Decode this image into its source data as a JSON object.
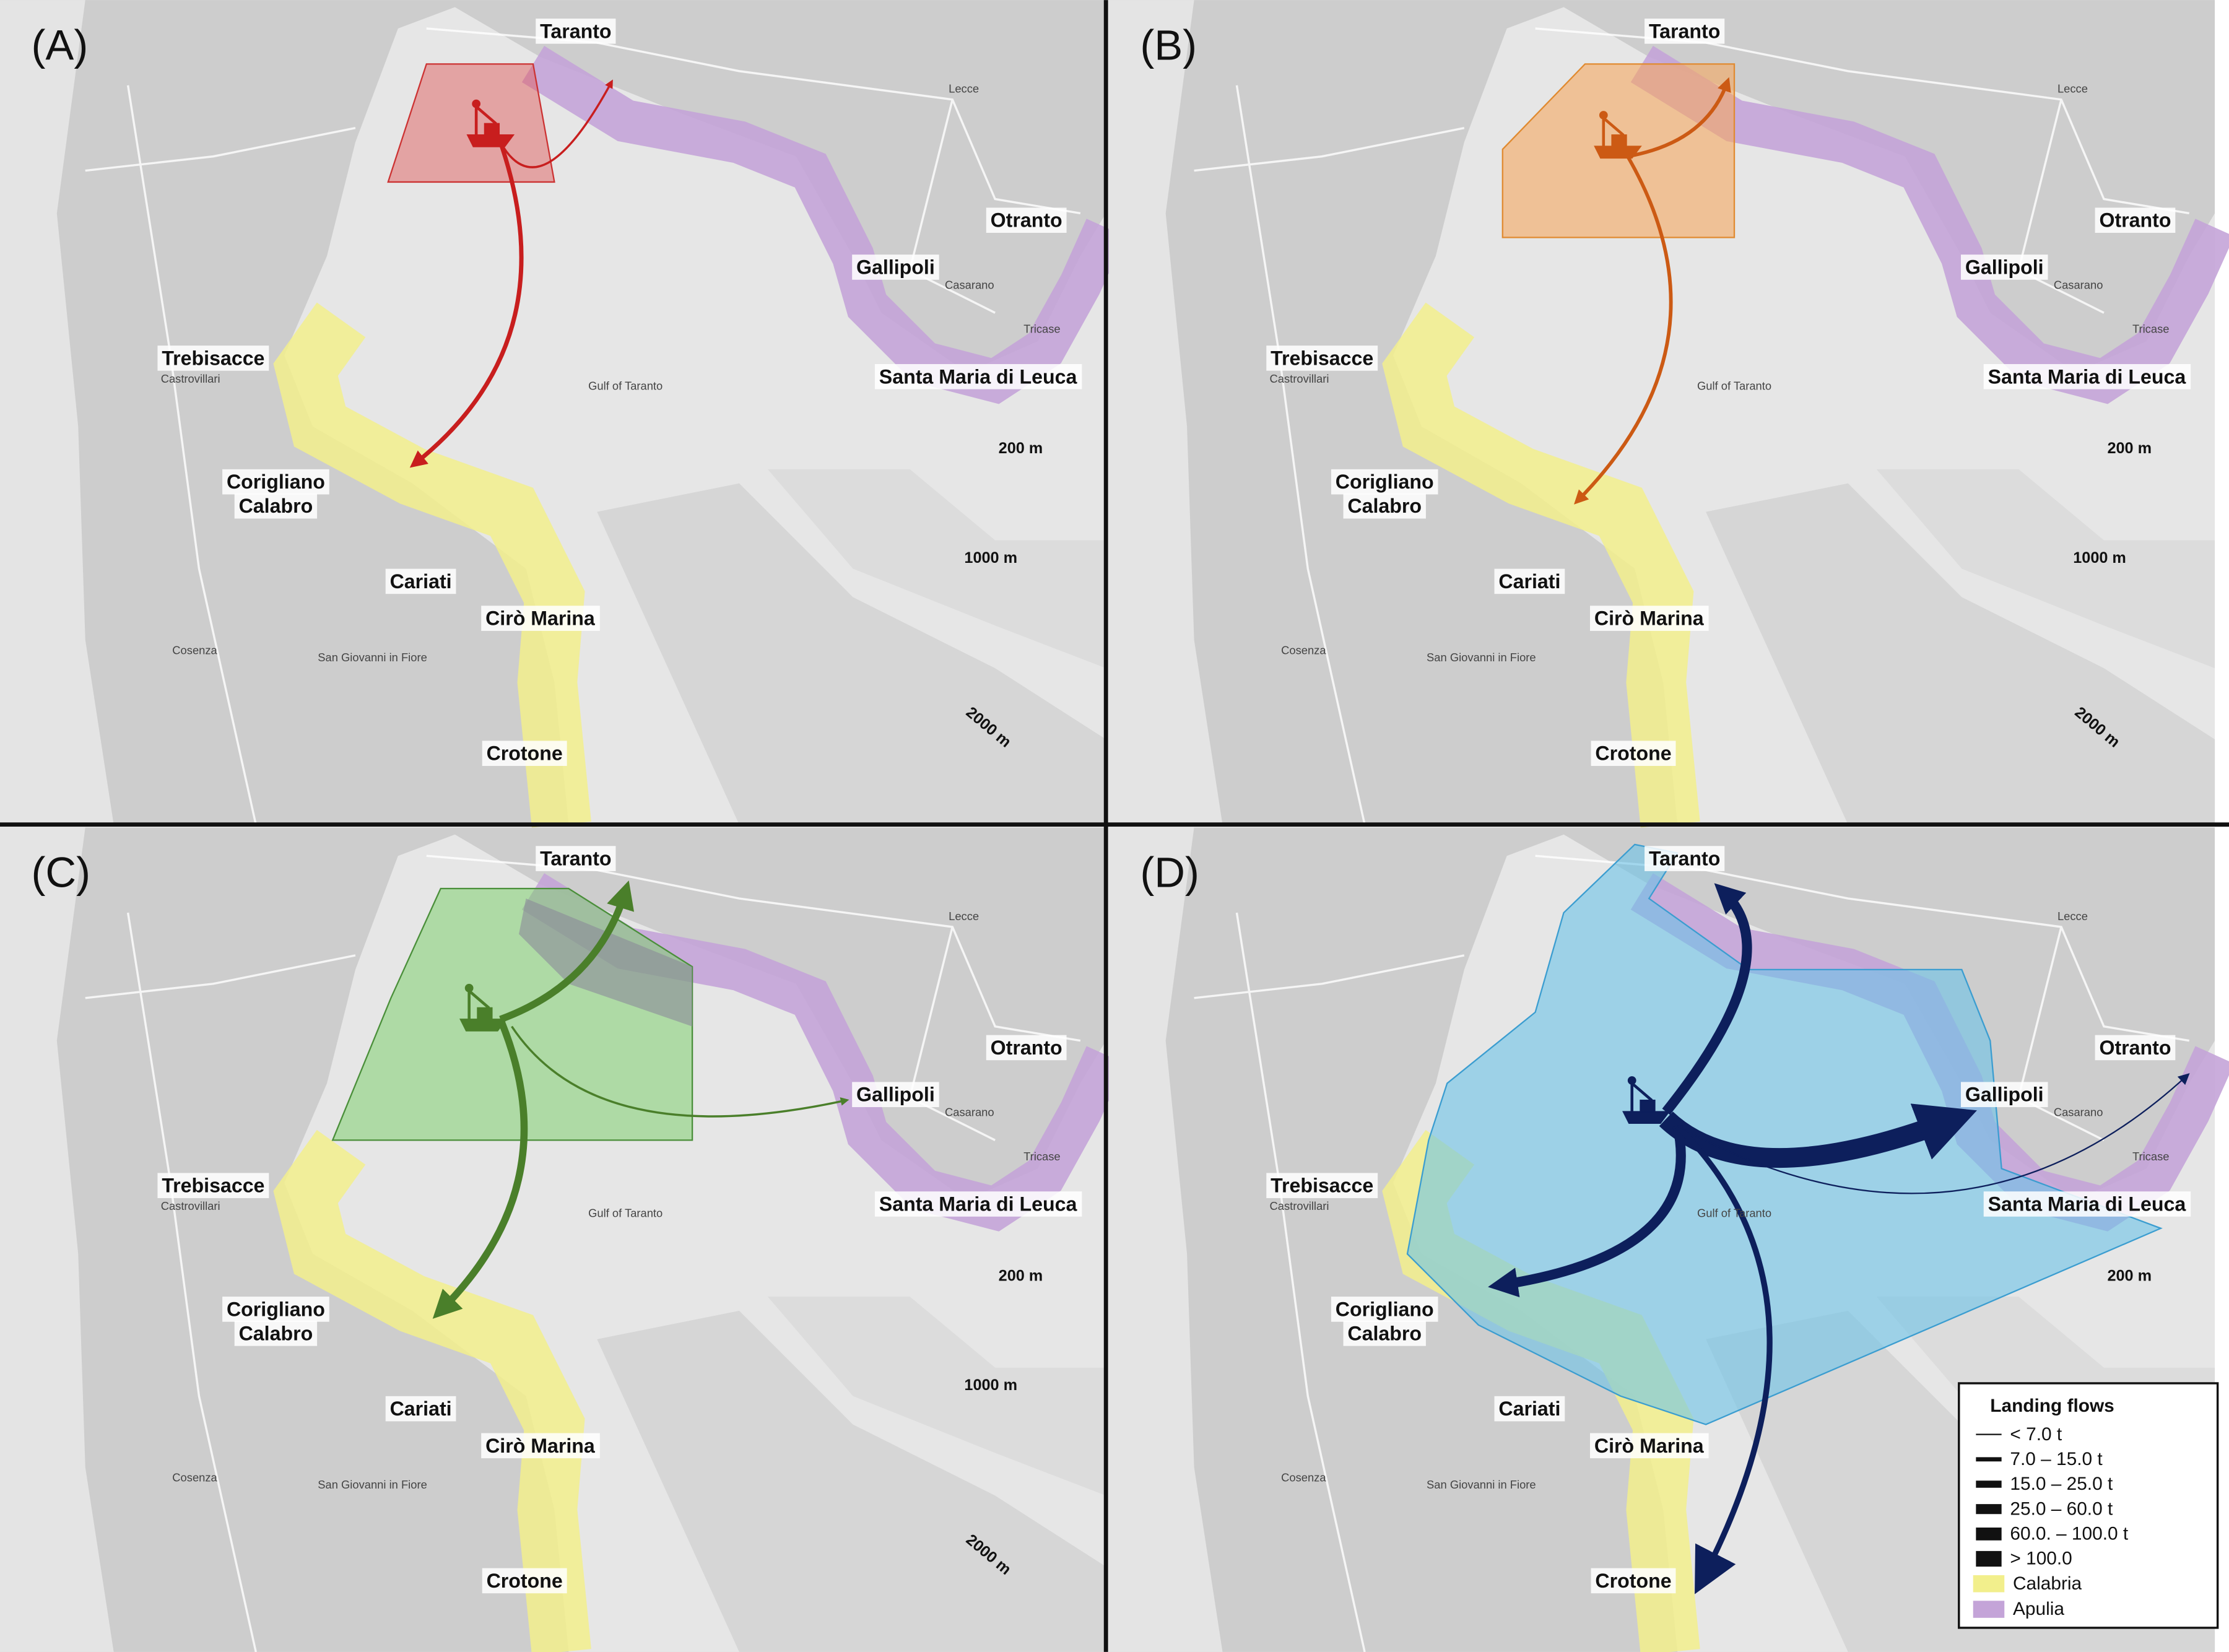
{
  "panels": [
    {
      "label": "(A)",
      "places": [
        "Taranto",
        "Lecce",
        "Otranto",
        "Gallipoli",
        "Casarano",
        "Tricase",
        "Santa Maria di Leuca",
        "Trebisacce",
        "Castrovillari",
        "Corigliano",
        "Calabro",
        "Cariati",
        "Cirò Marina",
        "Crotone",
        "Cosenza",
        "San Giovanni in Fiore",
        "Gulf of Taranto"
      ],
      "depths": [
        "200 m",
        "1000 m",
        "2000 m"
      ]
    },
    {
      "label": "(B)",
      "places": [
        "Taranto",
        "Lecce",
        "Otranto",
        "Gallipoli",
        "Casarano",
        "Tricase",
        "Santa Maria di Leuca",
        "Trebisacce",
        "Castrovillari",
        "Corigliano",
        "Calabro",
        "Cariati",
        "Cirò Marina",
        "Crotone",
        "Cosenza",
        "San Giovanni in Fiore",
        "Gulf of Taranto"
      ],
      "depths": [
        "200 m",
        "1000 m",
        "2000 m"
      ]
    },
    {
      "label": "(C)",
      "places": [
        "Taranto",
        "Lecce",
        "Otranto",
        "Gallipoli",
        "Casarano",
        "Tricase",
        "Santa Maria di Leuca",
        "Trebisacce",
        "Castrovillari",
        "Corigliano",
        "Calabro",
        "Cariati",
        "Cirò Marina",
        "Crotone",
        "Cosenza",
        "San Giovanni in Fiore",
        "Gulf of Taranto"
      ],
      "depths": [
        "200 m",
        "1000 m",
        "2000 m"
      ]
    },
    {
      "label": "(D)",
      "places": [
        "Taranto",
        "Lecce",
        "Otranto",
        "Gallipoli",
        "Casarano",
        "Tricase",
        "Santa Maria di Leuca",
        "Trebisacce",
        "Castrovillari",
        "Corigliano",
        "Calabro",
        "Cariati",
        "Cirò Marina",
        "Crotone",
        "Cosenza",
        "San Giovanni in Fiore",
        "Gulf of Taranto"
      ],
      "depths": [
        "200 m"
      ]
    }
  ],
  "legend": {
    "title": "Landing flows",
    "flows": [
      "< 7.0 t",
      "7.0 – 15.0 t",
      "15.0 – 25.0 t",
      "25.0 – 60.0 t",
      "60.0. – 100.0 t",
      "> 100.0"
    ],
    "regions": [
      "Calabria",
      "Apulia"
    ]
  }
}
